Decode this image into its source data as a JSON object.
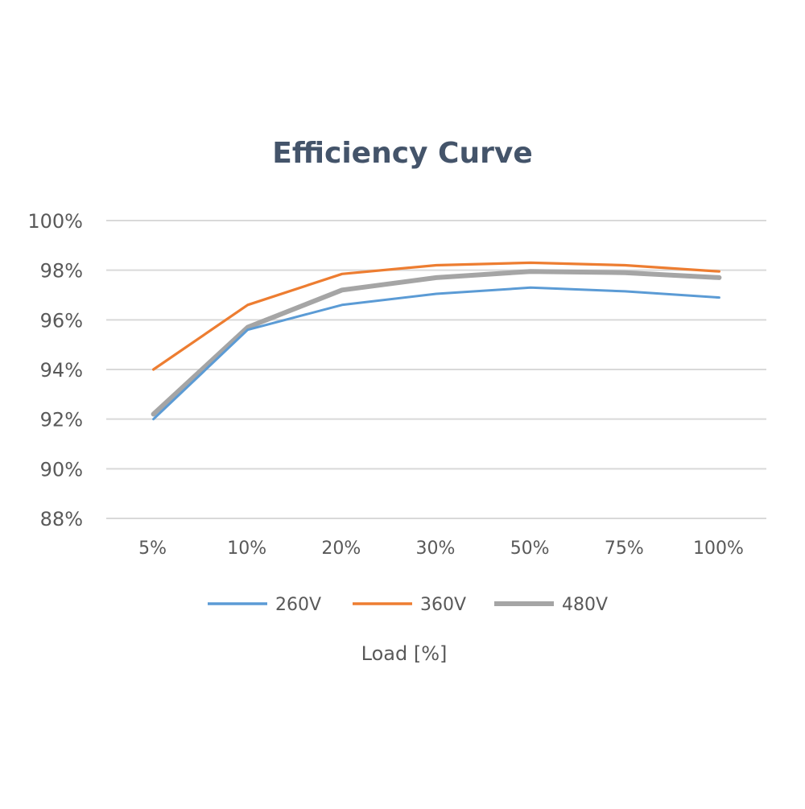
{
  "chart_data": {
    "type": "line",
    "title": "Efficiency Curve",
    "xlabel": "Load [%]",
    "ylabel": "",
    "categories": [
      "5%",
      "10%",
      "20%",
      "30%",
      "50%",
      "75%",
      "100%"
    ],
    "y_ticks": [
      "88%",
      "90%",
      "92%",
      "94%",
      "96%",
      "98%",
      "100%"
    ],
    "ylim": [
      88,
      100
    ],
    "grid": true,
    "legend_position": "bottom",
    "series": [
      {
        "name": "260V",
        "color": "#5b9bd5",
        "values": [
          92.0,
          95.6,
          96.6,
          97.05,
          97.3,
          97.15,
          96.9
        ]
      },
      {
        "name": "360V",
        "color": "#ed7d31",
        "values": [
          94.0,
          96.6,
          97.85,
          98.2,
          98.3,
          98.2,
          97.95
        ]
      },
      {
        "name": "480V",
        "color": "#a5a5a5",
        "values": [
          92.2,
          95.7,
          97.2,
          97.7,
          97.95,
          97.9,
          97.7
        ]
      }
    ]
  }
}
